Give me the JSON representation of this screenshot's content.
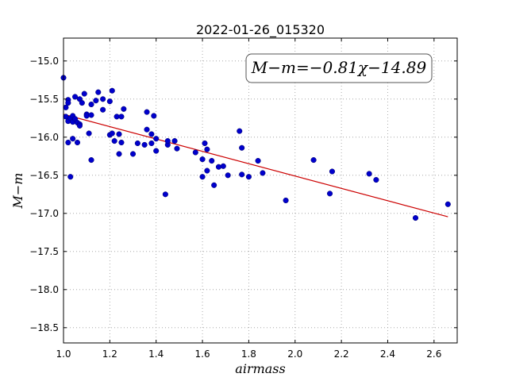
{
  "chart_data": {
    "type": "scatter",
    "title": "2022-01-26_015320",
    "xlabel": "airmass",
    "ylabel": "M−m",
    "xlim": [
      1.0,
      2.7
    ],
    "ylim": [
      -18.7,
      -14.7
    ],
    "invert_y": true,
    "grid": true,
    "x_ticks": [
      1.0,
      1.2,
      1.4,
      1.6,
      1.8,
      2.0,
      2.2,
      2.4,
      2.6
    ],
    "x_tick_labels": [
      "1.0",
      "1.2",
      "1.4",
      "1.6",
      "1.8",
      "2.0",
      "2.2",
      "2.4",
      "2.6"
    ],
    "y_ticks": [
      -15.0,
      -15.5,
      -16.0,
      -16.5,
      -17.0,
      -17.5,
      -18.0,
      -18.5
    ],
    "y_tick_labels": [
      "−15.0",
      "−15.5",
      "−16.0",
      "−16.5",
      "−17.0",
      "−17.5",
      "−18.0",
      "−18.5"
    ],
    "annotation": "M−m=−0.81χ−14.89",
    "fit": {
      "slope": -0.81,
      "intercept": -14.89,
      "x_range": [
        1.0,
        2.66
      ],
      "color": "#cc0000"
    },
    "point_color": "#0000cc",
    "points": [
      [
        1.0,
        -15.22
      ],
      [
        1.01,
        -15.61
      ],
      [
        1.01,
        -15.73
      ],
      [
        1.02,
        -15.51
      ],
      [
        1.02,
        -15.55
      ],
      [
        1.02,
        -15.79
      ],
      [
        1.02,
        -16.07
      ],
      [
        1.03,
        -16.52
      ],
      [
        1.03,
        -15.75
      ],
      [
        1.04,
        -15.72
      ],
      [
        1.04,
        -15.8
      ],
      [
        1.04,
        -16.02
      ],
      [
        1.05,
        -15.47
      ],
      [
        1.05,
        -15.76
      ],
      [
        1.06,
        -15.81
      ],
      [
        1.06,
        -16.07
      ],
      [
        1.07,
        -15.83
      ],
      [
        1.07,
        -15.85
      ],
      [
        1.07,
        -15.5
      ],
      [
        1.08,
        -15.55
      ],
      [
        1.09,
        -15.43
      ],
      [
        1.1,
        -15.7
      ],
      [
        1.1,
        -15.72
      ],
      [
        1.11,
        -15.95
      ],
      [
        1.12,
        -15.57
      ],
      [
        1.12,
        -15.71
      ],
      [
        1.12,
        -16.3
      ],
      [
        1.14,
        -15.52
      ],
      [
        1.15,
        -15.41
      ],
      [
        1.17,
        -15.5
      ],
      [
        1.17,
        -15.64
      ],
      [
        1.2,
        -15.97
      ],
      [
        1.2,
        -15.53
      ],
      [
        1.21,
        -15.95
      ],
      [
        1.21,
        -15.39
      ],
      [
        1.22,
        -16.05
      ],
      [
        1.23,
        -15.73
      ],
      [
        1.24,
        -16.22
      ],
      [
        1.24,
        -15.96
      ],
      [
        1.25,
        -15.73
      ],
      [
        1.25,
        -16.07
      ],
      [
        1.26,
        -15.63
      ],
      [
        1.3,
        -16.22
      ],
      [
        1.32,
        -16.08
      ],
      [
        1.35,
        -16.1
      ],
      [
        1.36,
        -15.67
      ],
      [
        1.36,
        -15.9
      ],
      [
        1.38,
        -15.96
      ],
      [
        1.38,
        -16.08
      ],
      [
        1.39,
        -15.72
      ],
      [
        1.4,
        -16.02
      ],
      [
        1.4,
        -16.18
      ],
      [
        1.44,
        -16.75
      ],
      [
        1.45,
        -16.1
      ],
      [
        1.45,
        -16.05
      ],
      [
        1.48,
        -16.05
      ],
      [
        1.49,
        -16.15
      ],
      [
        1.57,
        -16.2
      ],
      [
        1.6,
        -16.29
      ],
      [
        1.6,
        -16.52
      ],
      [
        1.61,
        -16.08
      ],
      [
        1.62,
        -16.16
      ],
      [
        1.62,
        -16.44
      ],
      [
        1.64,
        -16.31
      ],
      [
        1.65,
        -16.63
      ],
      [
        1.67,
        -16.39
      ],
      [
        1.69,
        -16.38
      ],
      [
        1.71,
        -16.5
      ],
      [
        1.76,
        -15.92
      ],
      [
        1.77,
        -16.14
      ],
      [
        1.77,
        -16.49
      ],
      [
        1.8,
        -16.52
      ],
      [
        1.84,
        -16.31
      ],
      [
        1.86,
        -16.47
      ],
      [
        1.96,
        -16.83
      ],
      [
        2.08,
        -16.3
      ],
      [
        2.15,
        -16.74
      ],
      [
        2.16,
        -16.45
      ],
      [
        2.32,
        -16.48
      ],
      [
        2.35,
        -16.56
      ],
      [
        2.52,
        -17.06
      ],
      [
        2.66,
        -16.88
      ]
    ]
  }
}
